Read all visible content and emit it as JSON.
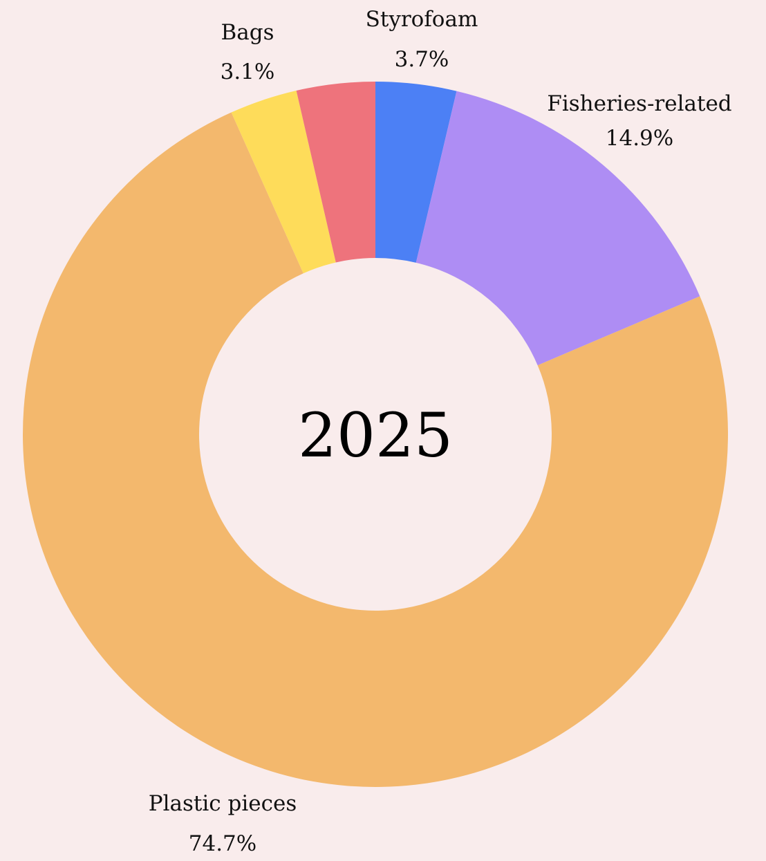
{
  "chart_data": {
    "type": "pie",
    "variant": "donut",
    "center_label": "2025",
    "legend": "none",
    "slices": [
      {
        "name": "Styrofoam",
        "label": "3.7%",
        "value": 3.7,
        "color": "#4c80f5"
      },
      {
        "name": "Fisheries-related",
        "label": "14.9%",
        "value": 14.9,
        "color": "#ae8df4"
      },
      {
        "name": "Plastic pieces",
        "label": "74.7%",
        "value": 74.7,
        "color": "#f3b86d"
      },
      {
        "name": "Bags",
        "label": "3.1%",
        "value": 3.1,
        "color": "#fedc5a"
      },
      {
        "name": "",
        "label": "",
        "value": 3.6,
        "color": "#ee737c"
      }
    ]
  }
}
